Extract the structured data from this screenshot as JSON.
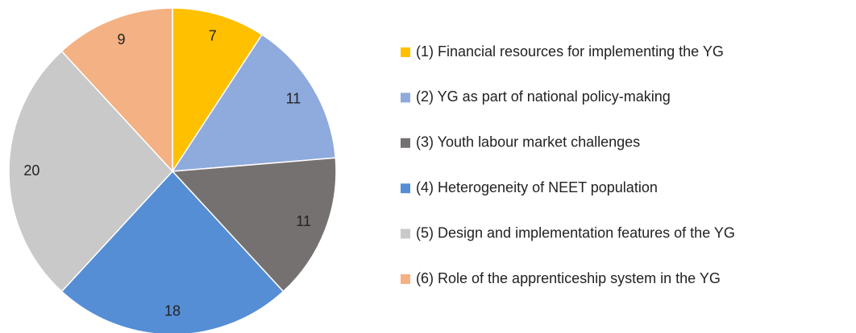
{
  "chart_data": {
    "type": "pie",
    "categories": [
      "(1) Financial resources for implementing the YG",
      "(2) YG as part of national policy-making",
      "(3) Youth labour market challenges",
      "(4) Heterogeneity of NEET population",
      "(5) Design and implementation features of the YG",
      "(6) Role of the apprenticeship system in the YG"
    ],
    "values": [
      7,
      11,
      11,
      18,
      20,
      9
    ],
    "colors": [
      "#ffc000",
      "#8faadc",
      "#767171",
      "#558ed5",
      "#c9c9c9",
      "#f4b183"
    ],
    "legend": "right"
  }
}
